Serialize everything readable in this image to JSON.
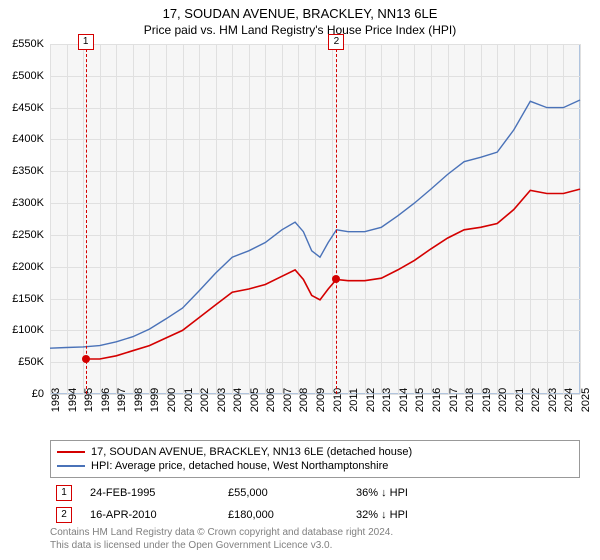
{
  "title": "17, SOUDAN AVENUE, BRACKLEY, NN13 6LE",
  "subtitle": "Price paid vs. HM Land Registry's House Price Index (HPI)",
  "chart": {
    "type": "line",
    "background_color": "#f6f6f6",
    "grid_color": "#e0e0e0",
    "border_color": "#b0c4de",
    "ylim": [
      0,
      550000
    ],
    "ytick_step": 50000,
    "yticks": [
      "£0",
      "£50K",
      "£100K",
      "£150K",
      "£200K",
      "£250K",
      "£300K",
      "£350K",
      "£400K",
      "£450K",
      "£500K",
      "£550K"
    ],
    "xlim": [
      1993,
      2025
    ],
    "xticks": [
      "1993",
      "1994",
      "1995",
      "1996",
      "1997",
      "1998",
      "1999",
      "2000",
      "2001",
      "2002",
      "2003",
      "2004",
      "2005",
      "2006",
      "2007",
      "2008",
      "2009",
      "2010",
      "2011",
      "2012",
      "2013",
      "2014",
      "2015",
      "2016",
      "2017",
      "2018",
      "2019",
      "2020",
      "2021",
      "2022",
      "2023",
      "2024",
      "2025"
    ],
    "series_property": {
      "color": "#d40000",
      "width": 1.6,
      "data": [
        [
          1995.15,
          55000
        ],
        [
          1996,
          55000
        ],
        [
          1997,
          60000
        ],
        [
          1998,
          68000
        ],
        [
          1999,
          76000
        ],
        [
          2000,
          88000
        ],
        [
          2001,
          100000
        ],
        [
          2002,
          120000
        ],
        [
          2003,
          140000
        ],
        [
          2004,
          160000
        ],
        [
          2005,
          165000
        ],
        [
          2006,
          172000
        ],
        [
          2007,
          185000
        ],
        [
          2007.8,
          195000
        ],
        [
          2008.3,
          180000
        ],
        [
          2008.8,
          155000
        ],
        [
          2009.3,
          148000
        ],
        [
          2009.8,
          165000
        ],
        [
          2010.29,
          180000
        ],
        [
          2011,
          178000
        ],
        [
          2012,
          178000
        ],
        [
          2013,
          182000
        ],
        [
          2014,
          195000
        ],
        [
          2015,
          210000
        ],
        [
          2016,
          228000
        ],
        [
          2017,
          245000
        ],
        [
          2018,
          258000
        ],
        [
          2019,
          262000
        ],
        [
          2020,
          268000
        ],
        [
          2021,
          290000
        ],
        [
          2022,
          320000
        ],
        [
          2023,
          315000
        ],
        [
          2024,
          315000
        ],
        [
          2025,
          322000
        ]
      ]
    },
    "series_hpi": {
      "color": "#4a72b8",
      "width": 1.4,
      "data": [
        [
          1993,
          72000
        ],
        [
          1994,
          73000
        ],
        [
          1995,
          74000
        ],
        [
          1996,
          76000
        ],
        [
          1997,
          82000
        ],
        [
          1998,
          90000
        ],
        [
          1999,
          102000
        ],
        [
          2000,
          118000
        ],
        [
          2001,
          135000
        ],
        [
          2002,
          162000
        ],
        [
          2003,
          190000
        ],
        [
          2004,
          215000
        ],
        [
          2005,
          225000
        ],
        [
          2006,
          238000
        ],
        [
          2007,
          258000
        ],
        [
          2007.8,
          270000
        ],
        [
          2008.3,
          255000
        ],
        [
          2008.8,
          225000
        ],
        [
          2009.3,
          215000
        ],
        [
          2009.8,
          238000
        ],
        [
          2010.3,
          258000
        ],
        [
          2011,
          255000
        ],
        [
          2012,
          255000
        ],
        [
          2013,
          262000
        ],
        [
          2014,
          280000
        ],
        [
          2015,
          300000
        ],
        [
          2016,
          322000
        ],
        [
          2017,
          345000
        ],
        [
          2018,
          365000
        ],
        [
          2019,
          372000
        ],
        [
          2020,
          380000
        ],
        [
          2021,
          415000
        ],
        [
          2022,
          460000
        ],
        [
          2023,
          450000
        ],
        [
          2024,
          450000
        ],
        [
          2025,
          462000
        ]
      ]
    },
    "sales": [
      {
        "n": "1",
        "year": 1995.15,
        "price": 55000,
        "color": "#d40000"
      },
      {
        "n": "2",
        "year": 2010.29,
        "price": 180000,
        "color": "#d40000"
      }
    ]
  },
  "legend": {
    "item1": {
      "label": "17, SOUDAN AVENUE, BRACKLEY, NN13 6LE (detached house)",
      "color": "#d40000"
    },
    "item2": {
      "label": "HPI: Average price, detached house, West Northamptonshire",
      "color": "#4a72b8"
    }
  },
  "sales_table": [
    {
      "n": "1",
      "date": "24-FEB-1995",
      "price": "£55,000",
      "pct": "36% ↓ HPI",
      "color": "#d40000"
    },
    {
      "n": "2",
      "date": "16-APR-2010",
      "price": "£180,000",
      "pct": "32% ↓ HPI",
      "color": "#d40000"
    }
  ],
  "footer": {
    "line1": "Contains HM Land Registry data © Crown copyright and database right 2024.",
    "line2": "This data is licensed under the Open Government Licence v3.0."
  }
}
